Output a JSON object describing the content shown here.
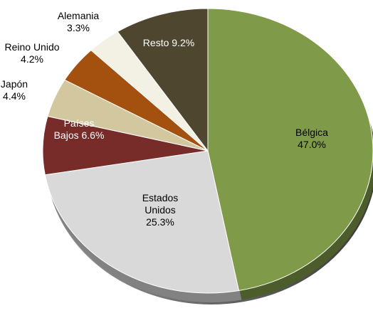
{
  "chart_data": {
    "type": "pie",
    "categories": [
      "Bélgica",
      "Estados Unidos",
      "Países Bajos",
      "Japón",
      "Reino Unido",
      "Alemania",
      "Resto"
    ],
    "values": [
      47.0,
      25.3,
      6.6,
      4.4,
      4.2,
      3.3,
      9.2
    ],
    "value_labels": [
      "47.0%",
      "25.3%",
      "6.6%",
      "4.4%",
      "4.2%",
      "3.3%",
      "9.2%"
    ],
    "colors": [
      "#7f9a48",
      "#d9d9d9",
      "#772c2a",
      "#d2c79f",
      "#a4500f",
      "#f3f0e4",
      "#4f4630"
    ]
  }
}
